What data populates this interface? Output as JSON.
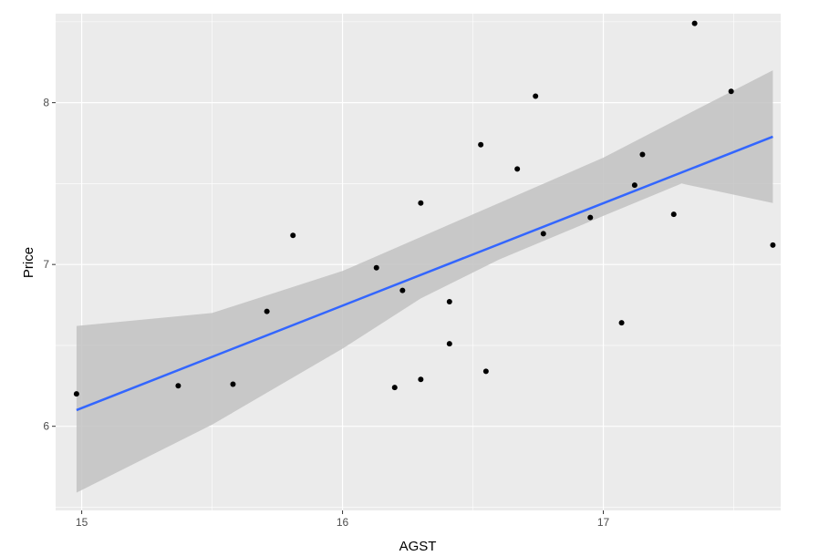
{
  "chart_data": {
    "type": "scatter",
    "title": "",
    "xlabel": "AGST",
    "ylabel": "Price",
    "xlim": [
      14.9,
      17.68
    ],
    "ylim": [
      5.48,
      8.55
    ],
    "x_ticks": [
      15,
      16,
      17
    ],
    "y_ticks": [
      6,
      7,
      8
    ],
    "x_tick_labels": [
      "15",
      "16",
      "17"
    ],
    "y_tick_labels": [
      "6",
      "7",
      "8"
    ],
    "grid": true,
    "legend": "none",
    "points": [
      {
        "x": 14.98,
        "y": 6.2
      },
      {
        "x": 15.37,
        "y": 6.25
      },
      {
        "x": 15.58,
        "y": 6.26
      },
      {
        "x": 15.71,
        "y": 6.71
      },
      {
        "x": 15.81,
        "y": 7.18
      },
      {
        "x": 16.13,
        "y": 6.98
      },
      {
        "x": 16.2,
        "y": 6.24
      },
      {
        "x": 16.23,
        "y": 6.84
      },
      {
        "x": 16.3,
        "y": 7.38
      },
      {
        "x": 16.3,
        "y": 6.29
      },
      {
        "x": 16.41,
        "y": 6.77
      },
      {
        "x": 16.41,
        "y": 6.51
      },
      {
        "x": 16.53,
        "y": 7.74
      },
      {
        "x": 16.55,
        "y": 6.34
      },
      {
        "x": 16.67,
        "y": 7.59
      },
      {
        "x": 16.74,
        "y": 8.04
      },
      {
        "x": 16.77,
        "y": 7.19
      },
      {
        "x": 16.95,
        "y": 7.29
      },
      {
        "x": 17.07,
        "y": 6.64
      },
      {
        "x": 17.12,
        "y": 7.49
      },
      {
        "x": 17.15,
        "y": 7.68
      },
      {
        "x": 17.27,
        "y": 7.31
      },
      {
        "x": 17.35,
        "y": 8.49
      },
      {
        "x": 17.49,
        "y": 8.07
      },
      {
        "x": 17.65,
        "y": 7.12
      }
    ],
    "fit": {
      "method": "linear",
      "x": [
        14.98,
        17.65
      ],
      "y": [
        6.1,
        7.79
      ]
    },
    "confidence_band": {
      "x": [
        14.98,
        15.5,
        16.0,
        16.3,
        16.6,
        17.0,
        17.3,
        17.65
      ],
      "lower": [
        5.59,
        6.01,
        6.48,
        6.79,
        7.03,
        7.3,
        7.5,
        7.38
      ],
      "upper": [
        6.62,
        6.7,
        6.96,
        7.17,
        7.38,
        7.66,
        7.91,
        8.2
      ]
    },
    "colors": {
      "panel_background": "#ebebeb",
      "grid": "#ffffff",
      "points": "#000000",
      "fit_line": "#3366ff",
      "band": "#c2c2c2"
    }
  }
}
